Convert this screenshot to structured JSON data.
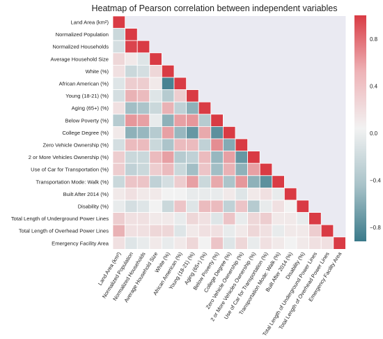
{
  "chart_data": {
    "type": "heatmap",
    "title": "Heatmap of Pearson correlation between independent variables",
    "mask": "upper-triangle",
    "variables": [
      "Land Area (km²)",
      "Normalized Population",
      "Normalized Households",
      "Average Household Size",
      "White (%)",
      "African American (%)",
      "Young (18-21) (%)",
      "Aging (65+) (%)",
      "Below Poverty (%)",
      "College Degree (%)",
      "Zero Vehicle Ownership (%)",
      "2 or More Vehicles Ownership (%)",
      "Use of Car for Transportation (%)",
      "Transportation Mode: Walk (%)",
      "Built After 2014 (%)",
      "Disability (%)",
      "Total Length of Underground Power Lines",
      "Total Length of Overhead Power Lines",
      "Emergency Facility Area"
    ],
    "values": [
      [
        1.0
      ],
      [
        -0.2,
        1.0
      ],
      [
        -0.15,
        0.95,
        1.0
      ],
      [
        0.15,
        0.05,
        -0.1,
        1.0
      ],
      [
        0.1,
        -0.2,
        -0.15,
        0.15,
        1.0
      ],
      [
        -0.1,
        0.2,
        0.2,
        0.05,
        -0.85,
        1.0
      ],
      [
        -0.15,
        0.35,
        0.3,
        -0.1,
        -0.3,
        0.2,
        1.0
      ],
      [
        0.1,
        -0.4,
        -0.35,
        -0.2,
        0.35,
        -0.25,
        -0.5,
        1.0
      ],
      [
        -0.3,
        0.5,
        0.45,
        -0.05,
        -0.5,
        0.45,
        0.5,
        -0.3,
        1.0
      ],
      [
        0.05,
        -0.5,
        -0.45,
        -0.3,
        0.45,
        -0.45,
        -0.7,
        0.4,
        -0.75,
        1.0
      ],
      [
        -0.15,
        0.3,
        0.3,
        -0.2,
        -0.35,
        0.3,
        0.3,
        -0.25,
        0.55,
        -0.55,
        1.0
      ],
      [
        0.2,
        -0.2,
        -0.2,
        0.3,
        0.45,
        -0.3,
        -0.25,
        0.3,
        -0.45,
        0.45,
        -0.7,
        1.0
      ],
      [
        0.2,
        -0.25,
        -0.2,
        0.2,
        0.3,
        -0.2,
        -0.4,
        0.25,
        -0.4,
        0.35,
        -0.5,
        0.45,
        1.0
      ],
      [
        -0.2,
        0.25,
        0.25,
        -0.25,
        -0.15,
        0.2,
        0.45,
        -0.2,
        0.4,
        -0.35,
        0.5,
        -0.5,
        -0.75,
        1.0
      ],
      [
        0.05,
        0.1,
        0.05,
        0.05,
        0.0,
        0.0,
        -0.05,
        -0.05,
        -0.05,
        0.05,
        -0.1,
        0.05,
        0.1,
        -0.05,
        1.0
      ],
      [
        -0.05,
        -0.15,
        -0.1,
        0.0,
        -0.2,
        0.25,
        -0.1,
        0.3,
        0.3,
        -0.25,
        0.25,
        -0.3,
        -0.05,
        0.1,
        0.0,
        1.0
      ],
      [
        0.2,
        0.1,
        0.1,
        0.05,
        0.05,
        -0.05,
        0.15,
        0.1,
        -0.1,
        0.25,
        -0.05,
        0.15,
        0.2,
        0.05,
        0.05,
        -0.05,
        1.0
      ],
      [
        0.35,
        0.1,
        0.1,
        0.15,
        0.15,
        -0.1,
        0.05,
        0.1,
        0.1,
        -0.05,
        0.05,
        0.15,
        0.1,
        -0.05,
        0.05,
        0.05,
        0.2,
        1.0
      ],
      [
        0.1,
        -0.1,
        -0.05,
        0.05,
        -0.05,
        0.05,
        0.15,
        0.0,
        0.25,
        -0.1,
        0.15,
        -0.05,
        0.1,
        0.05,
        0.0,
        0.05,
        0.1,
        0.1,
        1.0
      ]
    ],
    "colorbar": {
      "ticks": [
        0.8,
        0.4,
        0.0,
        -0.4,
        -0.8
      ],
      "tick_labels": [
        "0.8",
        "0.4",
        "0.0",
        "−0.4",
        "−0.8"
      ],
      "range": [
        -0.92,
        1.0
      ]
    },
    "colors": {
      "negative": "#3a7a8a",
      "neutral": "#f2f2f2",
      "positive": "#d93b44",
      "background": "#eaeaf2",
      "grid": "#ffffff"
    }
  }
}
